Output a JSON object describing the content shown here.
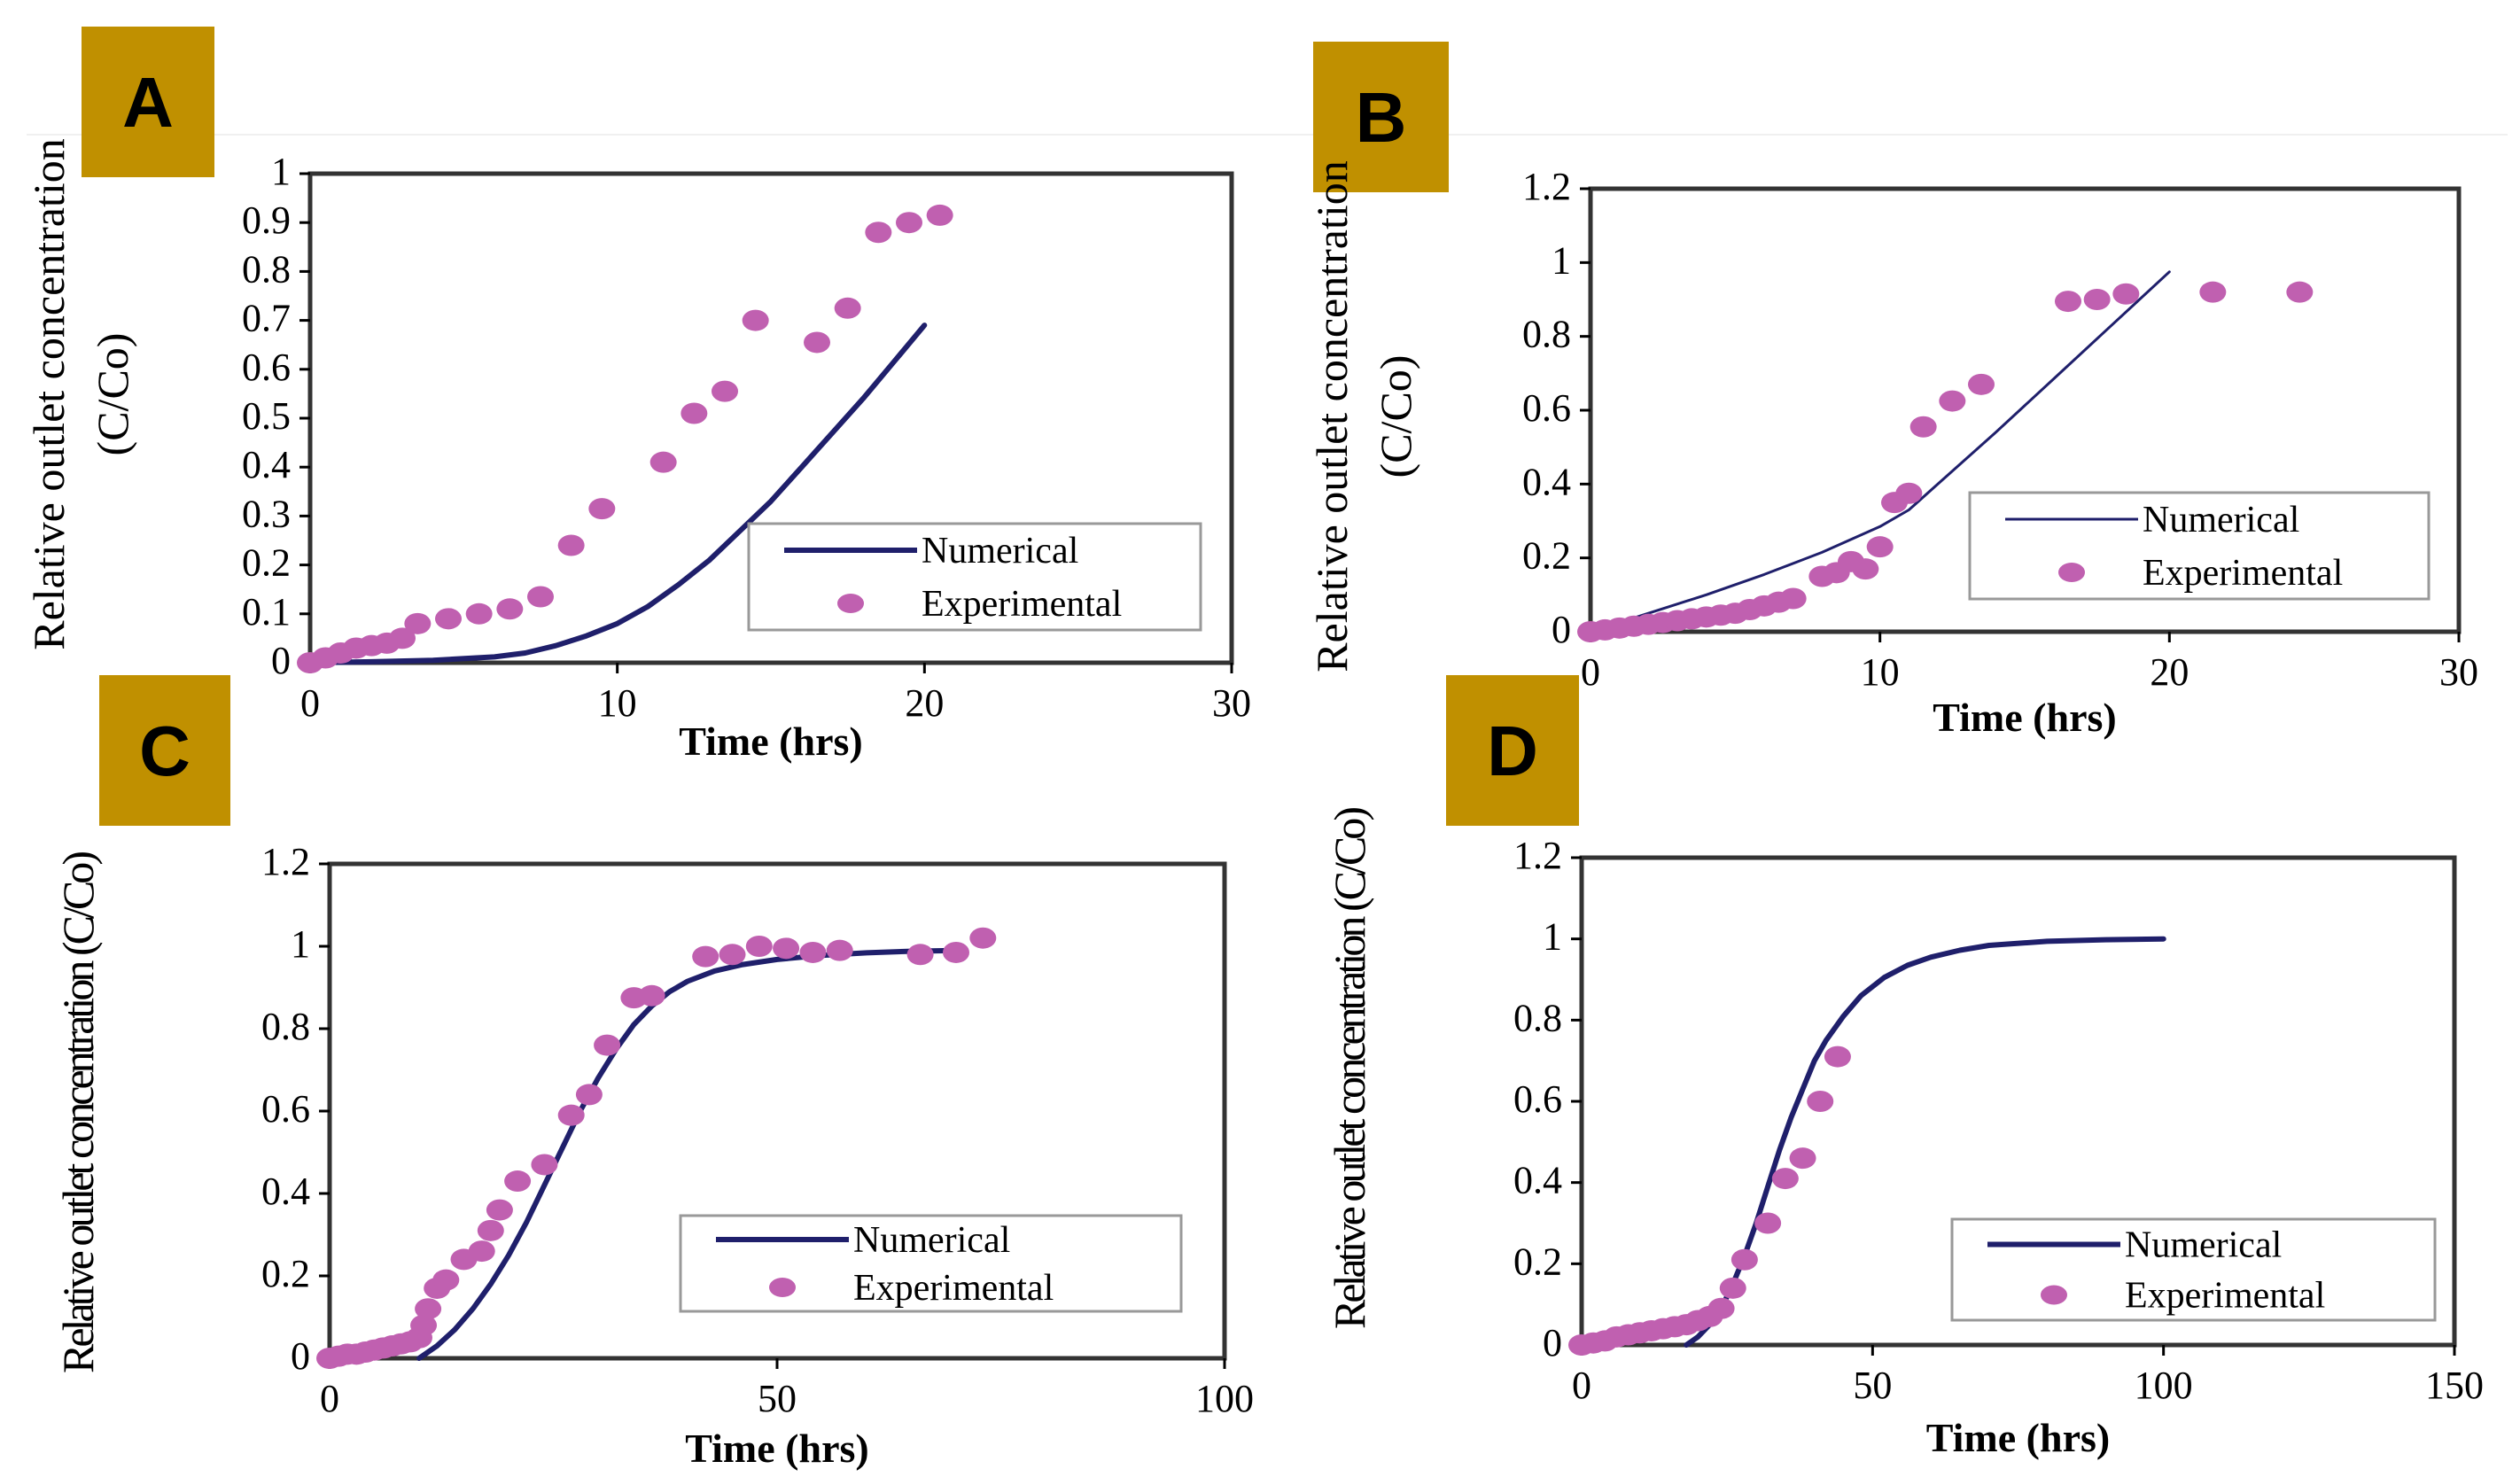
{
  "colors": {
    "badge": "#C09000",
    "badge_text": "#000000",
    "numerical_line": "#1F1F6B",
    "experimental_marker": "#C060B0",
    "axis": "#000000",
    "frame": "#333333",
    "legend_border": "#999999"
  },
  "chart_data": [
    {
      "id": "A",
      "type": "line",
      "panel_label": "A",
      "title": "",
      "xlabel": "Time (hrs)",
      "ylabel_lines": [
        "Relative outlet concentration",
        "(C/Co)"
      ],
      "xlim": [
        0,
        30
      ],
      "ylim": [
        0,
        1
      ],
      "xticks": [
        0,
        10,
        20,
        30
      ],
      "yticks": [
        0,
        0.1,
        0.2,
        0.3,
        0.4,
        0.5,
        0.6,
        0.7,
        0.8,
        0.9,
        1
      ],
      "xtick_labels": [
        "0",
        "10",
        "20",
        "30"
      ],
      "ytick_labels": [
        "0",
        "0.1",
        "0.2",
        "0.3",
        "0.4",
        "0.5",
        "0.6",
        "0.7",
        "0.8",
        "0.9",
        "1"
      ],
      "legend": {
        "placement": "bottom-right",
        "entries": [
          "Numerical",
          "Experimental"
        ]
      },
      "series": [
        {
          "name": "Numerical",
          "kind": "line",
          "x": [
            0,
            2,
            4,
            6,
            7,
            8,
            9,
            10,
            11,
            12,
            13,
            14,
            15,
            16,
            17,
            18,
            19,
            20
          ],
          "y": [
            0,
            0.002,
            0.005,
            0.012,
            0.02,
            0.035,
            0.055,
            0.08,
            0.115,
            0.16,
            0.21,
            0.27,
            0.33,
            0.4,
            0.47,
            0.54,
            0.615,
            0.69
          ]
        },
        {
          "name": "Experimental",
          "kind": "scatter",
          "x": [
            0,
            0.5,
            1,
            1.5,
            2,
            2.5,
            3,
            3.5,
            4.5,
            5.5,
            6.5,
            7.5,
            8.5,
            9.5,
            11.5,
            12.5,
            13.5,
            14.5,
            16.5,
            17.5,
            18.5,
            19.5,
            20.5
          ],
          "y": [
            0,
            0.01,
            0.02,
            0.03,
            0.035,
            0.04,
            0.05,
            0.08,
            0.09,
            0.1,
            0.11,
            0.135,
            0.24,
            0.315,
            0.41,
            0.51,
            0.555,
            0.7,
            0.655,
            0.725,
            0.88,
            0.9,
            0.915
          ]
        }
      ]
    },
    {
      "id": "B",
      "type": "line",
      "panel_label": "B",
      "title": "",
      "xlabel": "Time (hrs)",
      "ylabel_lines": [
        "Relative outlet concentration",
        "(C/Co)"
      ],
      "xlim": [
        0,
        30
      ],
      "ylim": [
        0,
        1.2
      ],
      "xticks": [
        0,
        10,
        20,
        30
      ],
      "yticks": [
        0,
        0.2,
        0.4,
        0.6,
        0.8,
        1,
        1.2
      ],
      "xtick_labels": [
        "0",
        "10",
        "20",
        "30"
      ],
      "ytick_labels": [
        "0",
        "0.2",
        "0.4",
        "0.6",
        "0.8",
        "1",
        "1.2"
      ],
      "legend": {
        "placement": "bottom-right",
        "entries": [
          "Numerical",
          "Experimental"
        ]
      },
      "series": [
        {
          "name": "Numerical",
          "kind": "line",
          "x": [
            0,
            2,
            4,
            6,
            8,
            10,
            11,
            12,
            14,
            16,
            18,
            20
          ],
          "y": [
            0,
            0.05,
            0.1,
            0.155,
            0.215,
            0.285,
            0.33,
            0.4,
            0.54,
            0.685,
            0.83,
            0.975
          ]
        },
        {
          "name": "Experimental",
          "kind": "scatter",
          "x": [
            0,
            0.5,
            1,
            1.5,
            2,
            2.5,
            3,
            3.5,
            4,
            4.5,
            5,
            5.5,
            6,
            6.5,
            7,
            8,
            8.5,
            9,
            9.5,
            10,
            10.5,
            11,
            11.5,
            12.5,
            13.5,
            16.5,
            17.5,
            18.5,
            21.5,
            24.5
          ],
          "y": [
            0,
            0.005,
            0.01,
            0.015,
            0.02,
            0.025,
            0.03,
            0.035,
            0.04,
            0.045,
            0.05,
            0.06,
            0.07,
            0.08,
            0.09,
            0.15,
            0.16,
            0.19,
            0.17,
            0.23,
            0.35,
            0.375,
            0.555,
            0.625,
            0.67,
            0.895,
            0.9,
            0.915,
            0.92,
            0.92
          ]
        }
      ]
    },
    {
      "id": "C",
      "type": "line",
      "panel_label": "C",
      "title": "",
      "xlabel": "Time (hrs)",
      "ylabel_lines": [
        "Relative outlet concentration (C/Co)"
      ],
      "xlim": [
        0,
        100
      ],
      "ylim": [
        0,
        1.2
      ],
      "xticks": [
        0,
        50,
        100
      ],
      "yticks": [
        0,
        0.2,
        0.4,
        0.6,
        0.8,
        1,
        1.2
      ],
      "xtick_labels": [
        "0",
        "50",
        "100"
      ],
      "ytick_labels": [
        "0",
        "0.2",
        "0.4",
        "0.6",
        "0.8",
        "1",
        "1.2"
      ],
      "legend": {
        "placement": "bottom-right",
        "entries": [
          "Numerical",
          "Experimental"
        ]
      },
      "series": [
        {
          "name": "Numerical",
          "kind": "line",
          "x": [
            10,
            12,
            14,
            16,
            18,
            20,
            22,
            24,
            26,
            28,
            30,
            32,
            34,
            36,
            38,
            40,
            43,
            46,
            50,
            55,
            60,
            65,
            70
          ],
          "y": [
            0,
            0.03,
            0.07,
            0.12,
            0.18,
            0.25,
            0.33,
            0.42,
            0.51,
            0.6,
            0.68,
            0.75,
            0.81,
            0.855,
            0.89,
            0.915,
            0.94,
            0.955,
            0.968,
            0.978,
            0.984,
            0.988,
            0.99
          ]
        },
        {
          "name": "Experimental",
          "kind": "scatter",
          "x": [
            0,
            1,
            2,
            3,
            4,
            5,
            6,
            7,
            8,
            9,
            10,
            10.5,
            11,
            12,
            13,
            15,
            17,
            18,
            19,
            21,
            24,
            27,
            29,
            31,
            34,
            36,
            42,
            45,
            48,
            51,
            54,
            57,
            66,
            70,
            73
          ],
          "y": [
            0,
            0.005,
            0.01,
            0.01,
            0.015,
            0.02,
            0.025,
            0.03,
            0.035,
            0.04,
            0.05,
            0.08,
            0.12,
            0.17,
            0.19,
            0.24,
            0.26,
            0.31,
            0.36,
            0.43,
            0.47,
            0.59,
            0.64,
            0.76,
            0.875,
            0.88,
            0.975,
            0.98,
            1,
            0.995,
            0.985,
            0.99,
            0.98,
            0.985,
            1.02
          ]
        }
      ]
    },
    {
      "id": "D",
      "type": "line",
      "panel_label": "D",
      "title": "",
      "xlabel": "Time (hrs)",
      "ylabel_lines": [
        "Relative outlet concentration (C/Co)"
      ],
      "xlim": [
        0,
        150
      ],
      "ylim": [
        0,
        1.2
      ],
      "xticks": [
        0,
        50,
        100,
        150
      ],
      "yticks": [
        0,
        0.2,
        0.4,
        0.6,
        0.8,
        1,
        1.2
      ],
      "xtick_labels": [
        "0",
        "50",
        "100",
        "150"
      ],
      "ytick_labels": [
        "0",
        "0.2",
        "0.4",
        "0.6",
        "0.8",
        "1",
        "1.2"
      ],
      "legend": {
        "placement": "bottom-right",
        "entries": [
          "Numerical",
          "Experimental"
        ]
      },
      "series": [
        {
          "name": "Numerical",
          "kind": "line",
          "x": [
            18,
            20,
            22,
            24,
            26,
            28,
            30,
            32,
            34,
            36,
            38,
            40,
            42,
            45,
            48,
            52,
            56,
            60,
            65,
            70,
            80,
            90,
            100
          ],
          "y": [
            0,
            0.02,
            0.05,
            0.09,
            0.15,
            0.22,
            0.3,
            0.39,
            0.48,
            0.56,
            0.63,
            0.7,
            0.75,
            0.81,
            0.86,
            0.905,
            0.935,
            0.955,
            0.972,
            0.984,
            0.994,
            0.998,
            1
          ]
        },
        {
          "name": "Experimental",
          "kind": "scatter",
          "x": [
            0,
            2,
            4,
            6,
            8,
            10,
            12,
            14,
            16,
            18,
            20,
            22,
            24,
            26,
            28,
            32,
            35,
            38,
            41,
            44
          ],
          "y": [
            0,
            0.005,
            0.01,
            0.02,
            0.025,
            0.03,
            0.035,
            0.04,
            0.045,
            0.05,
            0.06,
            0.07,
            0.09,
            0.14,
            0.21,
            0.3,
            0.41,
            0.46,
            0.6,
            0.71
          ]
        }
      ]
    }
  ]
}
